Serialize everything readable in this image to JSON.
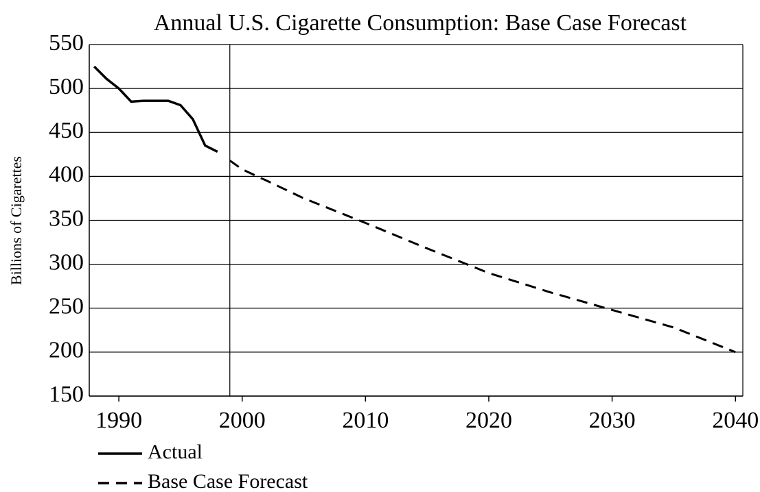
{
  "chart_data": {
    "type": "line",
    "title": "Annual U.S. Cigarette Consumption: Base Case Forecast",
    "y_label": "Billions of Cigarettes",
    "xlim": [
      1987.6,
      2040.6
    ],
    "xticks": [
      1990,
      2000,
      2010,
      2020,
      2030,
      2040
    ],
    "ylim": [
      150,
      550
    ],
    "yticks": [
      150,
      200,
      250,
      300,
      350,
      400,
      450,
      500,
      550
    ],
    "grid": true,
    "vline": 1999,
    "legend": "bottom-left",
    "series": [
      {
        "name": "Actual",
        "color": "#000000",
        "dash": false,
        "x": [
          1988,
          1989,
          1990,
          1991,
          1992,
          1993,
          1994,
          1995,
          1996,
          1997,
          1998
        ],
        "values": [
          525,
          511,
          500,
          485,
          486,
          486,
          486,
          481,
          465,
          435,
          428
        ]
      },
      {
        "name": "Base Case Forecast",
        "color": "#000000",
        "dash": true,
        "x": [
          1999,
          2000,
          2002,
          2005,
          2010,
          2015,
          2020,
          2025,
          2030,
          2035,
          2040
        ],
        "values": [
          418,
          408,
          395,
          375,
          347,
          318,
          290,
          268,
          248,
          228,
          200
        ]
      }
    ]
  }
}
